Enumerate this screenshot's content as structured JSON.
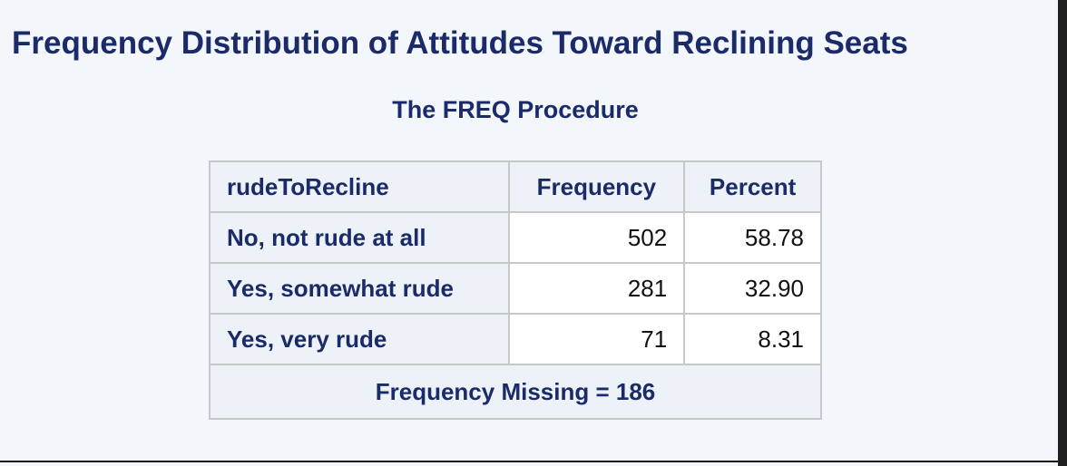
{
  "title": "Frequency Distribution of Attitudes Toward Reclining Seats",
  "subtitle": "The FREQ Procedure",
  "table": {
    "headers": [
      "rudeToRecline",
      "Frequency",
      "Percent"
    ],
    "rows": [
      {
        "label": "No, not rude at all",
        "frequency": "502",
        "percent": "58.78"
      },
      {
        "label": "Yes, somewhat rude",
        "frequency": "281",
        "percent": "32.90"
      },
      {
        "label": "Yes, very rude",
        "frequency": "71",
        "percent": "8.31"
      }
    ],
    "footer": "Frequency Missing = 186"
  },
  "colors": {
    "title": "#1b2b69",
    "header_background": "#edf2f9",
    "cell_background": "#ffffff",
    "border": "#c8c8c8"
  }
}
